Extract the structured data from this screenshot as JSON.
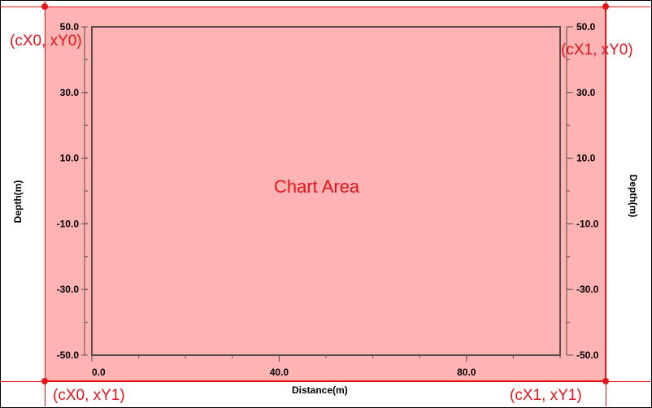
{
  "colors": {
    "chart_area_fill": "#ffb3b3",
    "guide": "#e4141b",
    "plot_frame": "#5a4a4a"
  },
  "chart_area": {
    "label": "Chart Area"
  },
  "corners": {
    "top_left": "(cX0, xY0)",
    "top_right": "(cX1, xY0)",
    "bottom_left": "(cX0, xY1)",
    "bottom_right": "(cX1, xY1)"
  },
  "chart_data": {
    "type": "scatter",
    "xlabel": "Distance(m)",
    "ylabel": "Depth(m)",
    "y2label": "Depth(m)",
    "xlim": [
      0,
      100
    ],
    "ylim": [
      -50,
      50
    ],
    "xticks": [
      0,
      40,
      80
    ],
    "xtick_labels": [
      "0.0",
      "40.0",
      "80.0"
    ],
    "yticks": [
      50,
      30,
      10,
      -10,
      -30,
      -50
    ],
    "ytick_labels": [
      "50.0",
      "30.0",
      "10.0",
      "-10.0",
      "-30.0",
      "-50.0"
    ],
    "grid": false,
    "series": []
  }
}
